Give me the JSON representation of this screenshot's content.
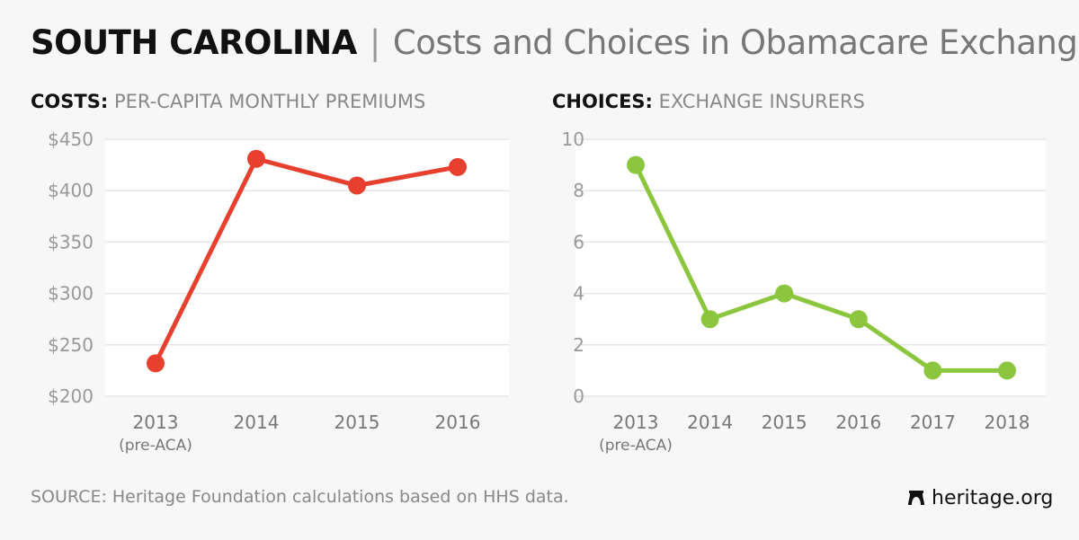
{
  "header": {
    "state": "SOUTH CAROLINA",
    "separator": "|",
    "subtitle": "Costs and Choices in Obamacare Exchanges"
  },
  "chart_data": [
    {
      "type": "line",
      "title_bold": "COSTS:",
      "title": "PER-CAPITA MONTHLY PREMIUMS",
      "categories": [
        "2013",
        "2014",
        "2015",
        "2016"
      ],
      "category_sublabels": [
        "(pre-ACA)",
        "",
        "",
        ""
      ],
      "values": [
        232,
        431,
        405,
        423
      ],
      "ylim": [
        200,
        450
      ],
      "yticks": [
        200,
        250,
        300,
        350,
        400,
        450
      ],
      "ytick_prefix": "$",
      "color": "#e8402f",
      "grid": true
    },
    {
      "type": "line",
      "title_bold": "CHOICES:",
      "title": "EXCHANGE INSURERS",
      "categories": [
        "2013",
        "2014",
        "2015",
        "2016",
        "2017",
        "2018"
      ],
      "category_sublabels": [
        "(pre-ACA)",
        "",
        "",
        "",
        "",
        ""
      ],
      "values": [
        9,
        3,
        4,
        3,
        1,
        1
      ],
      "ylim": [
        0,
        10
      ],
      "yticks": [
        0,
        2,
        4,
        6,
        8,
        10
      ],
      "ytick_prefix": "",
      "color": "#8cc63f",
      "grid": true
    }
  ],
  "footer": {
    "source": "SOURCE: Heritage Foundation calculations based on HHS data.",
    "logo": "heritage.org",
    "logo_icon": "liberty-bell-icon"
  }
}
